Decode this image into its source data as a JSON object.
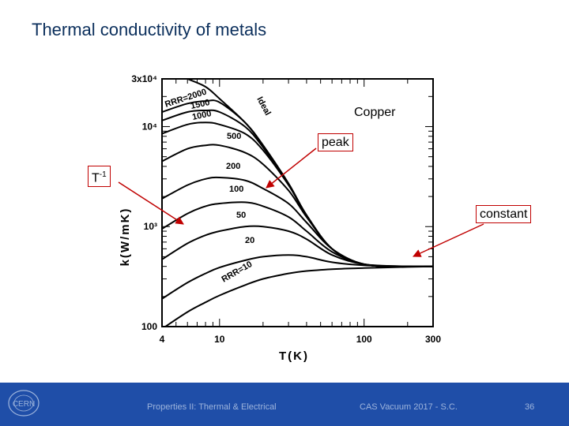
{
  "slide": {
    "title": "Thermal conductivity of metals",
    "footer_center": "Properties II: Thermal & Electrical",
    "footer_right": "CAS Vacuum 2017 - S.C.",
    "page_number": "36",
    "logo_text": "CERN"
  },
  "annotations": {
    "copper": "Copper",
    "peak": "peak",
    "t_inverse_base": "T",
    "t_inverse_exp": "-1",
    "constant": "constant"
  },
  "colors": {
    "footer": "#1f4ea8",
    "title": "#0b2f5c",
    "callout": "#c00000"
  },
  "chart_data": {
    "type": "line",
    "xlabel": "T(K)",
    "ylabel": "k(W/mK)",
    "xscale": "log",
    "yscale": "log",
    "xlim": [
      4,
      300
    ],
    "ylim": [
      100,
      30000
    ],
    "x_ticks": [
      "4",
      "10",
      "100",
      "300"
    ],
    "y_ticks": [
      "3x10⁴",
      "10⁴",
      "10³",
      "100"
    ],
    "series": [
      {
        "name": "Ideal",
        "x": [
          6,
          8,
          10,
          15,
          20,
          30,
          40,
          60,
          100,
          200,
          300
        ],
        "y": [
          30000,
          25000,
          19000,
          11000,
          6500,
          2700,
          1300,
          600,
          420,
          400,
          400
        ]
      },
      {
        "name": "RRR=2000",
        "x": [
          4,
          6,
          8,
          10,
          15,
          20,
          30,
          40,
          60,
          100,
          200,
          300
        ],
        "y": [
          14000,
          17000,
          18000,
          17500,
          11000,
          6500,
          2700,
          1300,
          600,
          420,
          400,
          400
        ]
      },
      {
        "name": "1500",
        "x": [
          4,
          6,
          8,
          10,
          15,
          20,
          30,
          40,
          60,
          100,
          200,
          300
        ],
        "y": [
          11500,
          14000,
          14500,
          14000,
          10000,
          6200,
          2650,
          1300,
          600,
          420,
          400,
          400
        ]
      },
      {
        "name": "1000",
        "x": [
          4,
          6,
          8,
          10,
          15,
          20,
          30,
          40,
          60,
          100,
          200,
          300
        ],
        "y": [
          8500,
          10500,
          11000,
          10500,
          8500,
          5800,
          2600,
          1290,
          600,
          420,
          400,
          400
        ]
      },
      {
        "name": "500",
        "x": [
          4,
          6,
          8,
          10,
          15,
          20,
          30,
          40,
          60,
          100,
          200,
          300
        ],
        "y": [
          4500,
          6000,
          6500,
          6500,
          5500,
          4200,
          2300,
          1250,
          600,
          420,
          400,
          400
        ]
      },
      {
        "name": "200",
        "x": [
          4,
          6,
          8,
          10,
          15,
          20,
          30,
          40,
          60,
          100,
          200,
          300
        ],
        "y": [
          1900,
          2600,
          3000,
          3100,
          2900,
          2400,
          1700,
          1100,
          600,
          420,
          400,
          400
        ]
      },
      {
        "name": "100",
        "x": [
          4,
          6,
          8,
          10,
          15,
          20,
          30,
          40,
          60,
          100,
          200,
          300
        ],
        "y": [
          950,
          1350,
          1600,
          1700,
          1750,
          1600,
          1250,
          900,
          560,
          420,
          400,
          400
        ]
      },
      {
        "name": "50",
        "x": [
          4,
          6,
          8,
          10,
          15,
          20,
          30,
          40,
          60,
          100,
          200,
          300
        ],
        "y": [
          470,
          680,
          820,
          900,
          1000,
          1000,
          900,
          750,
          520,
          420,
          400,
          400
        ]
      },
      {
        "name": "20",
        "x": [
          4,
          6,
          8,
          10,
          15,
          20,
          30,
          40,
          60,
          100,
          200,
          300
        ],
        "y": [
          190,
          275,
          340,
          390,
          460,
          500,
          520,
          500,
          440,
          410,
          400,
          400
        ]
      },
      {
        "name": "RRR=10",
        "x": [
          4,
          6,
          8,
          10,
          15,
          20,
          30,
          40,
          60,
          100,
          200,
          300
        ],
        "y": [
          95,
          140,
          175,
          205,
          260,
          300,
          340,
          360,
          375,
          385,
          395,
          400
        ]
      }
    ]
  }
}
